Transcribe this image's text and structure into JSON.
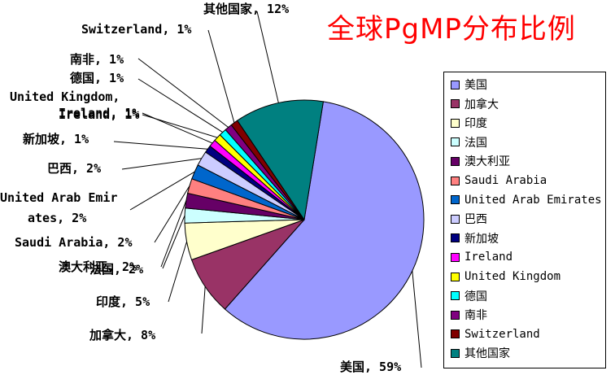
{
  "chart_data": {
    "type": "pie",
    "title": "全球PgMP分布比例",
    "slices": [
      {
        "name": "美国",
        "value": 59,
        "label": "美国, 59%",
        "color": "#9999ff"
      },
      {
        "name": "加拿大",
        "value": 8,
        "label": "加拿大, 8%",
        "color": "#993366"
      },
      {
        "name": "印度",
        "value": 5,
        "label": "印度, 5%",
        "color": "#ffffcc"
      },
      {
        "name": "法国",
        "value": 2,
        "label": "法国, 2%",
        "color": "#ccffff"
      },
      {
        "name": "澳大利亚",
        "value": 2,
        "label": "澳大利亚, 2%",
        "color": "#660066"
      },
      {
        "name": "Saudi Arabia",
        "value": 2,
        "label": "Saudi Arabia, 2%",
        "color": "#ff8080"
      },
      {
        "name": "United Arab Emirates",
        "value": 2,
        "label": "United Arab Emir|ates, 2%",
        "color": "#0066cc"
      },
      {
        "name": "巴西",
        "value": 2,
        "label": "巴西, 2%",
        "color": "#ccccff"
      },
      {
        "name": "新加坡",
        "value": 1,
        "label": "新加坡, 1%",
        "color": "#000080"
      },
      {
        "name": "Ireland",
        "value": 1,
        "label": "Ireland, 1%",
        "color": "#ff00ff"
      },
      {
        "name": "United Kingdom",
        "value": 1,
        "label": "United Kingdom,|Ireland, 1%",
        "color": "#ffff00"
      },
      {
        "name": "德国",
        "value": 1,
        "label": "德国, 1%",
        "color": "#00ffff"
      },
      {
        "name": "南非",
        "value": 1,
        "label": "南非, 1%",
        "color": "#800080"
      },
      {
        "name": "Switzerland",
        "value": 1,
        "label": "Switzerland, 1%",
        "color": "#800000"
      },
      {
        "name": "其他国家",
        "value": 12,
        "label": "其他国家, 12%",
        "color": "#008080"
      }
    ],
    "legend_position": "right"
  }
}
